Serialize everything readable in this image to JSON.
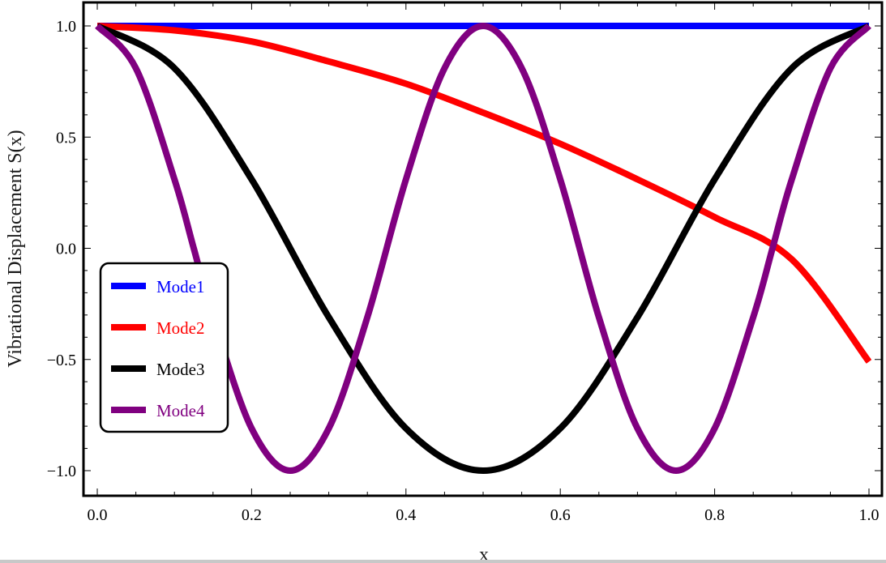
{
  "chart_data": {
    "type": "line",
    "title": "",
    "xlabel": "x",
    "ylabel": "Vibrational Displacement S(x)",
    "xlim": [
      -0.01,
      1.01
    ],
    "ylim": [
      -1.05,
      1.05
    ],
    "xticks": [
      "0.0",
      "0.2",
      "0.4",
      "0.6",
      "0.8",
      "1.0"
    ],
    "xtick_values": [
      0.0,
      0.2,
      0.4,
      0.6,
      0.8,
      1.0
    ],
    "yticks": [
      "−1.0",
      "−0.5",
      "0.0",
      "0.5",
      "1.0"
    ],
    "ytick_values": [
      -1.0,
      -0.5,
      0.0,
      0.5,
      1.0
    ],
    "grid": false,
    "legend_position": "lower-left",
    "series": [
      {
        "name": "Mode1",
        "color": "#0000ff",
        "x": [
          0,
          0.25,
          0.5,
          0.75,
          1.0
        ],
        "y": [
          1.0,
          1.0,
          1.0,
          1.0,
          1.0
        ]
      },
      {
        "name": "Mode2",
        "color": "#ff0000",
        "x": [
          0,
          0.1,
          0.2,
          0.3,
          0.4,
          0.5,
          0.6,
          0.7,
          0.8,
          0.9,
          1.0
        ],
        "y": [
          1.0,
          0.98,
          0.93,
          0.84,
          0.74,
          0.61,
          0.47,
          0.31,
          0.14,
          -0.05,
          -0.51
        ]
      },
      {
        "name": "Mode3",
        "color": "#000000",
        "x": [
          0,
          0.1,
          0.2,
          0.3,
          0.4,
          0.5,
          0.6,
          0.7,
          0.8,
          0.9,
          1.0
        ],
        "y": [
          1.0,
          0.81,
          0.31,
          -0.31,
          -0.81,
          -1.0,
          -0.81,
          -0.31,
          0.31,
          0.81,
          1.0
        ]
      },
      {
        "name": "Mode4",
        "color": "#800080",
        "x": [
          0,
          0.05,
          0.1,
          0.125,
          0.15,
          0.2,
          0.25,
          0.3,
          0.35,
          0.4,
          0.45,
          0.5,
          0.55,
          0.6,
          0.65,
          0.7,
          0.75,
          0.8,
          0.85,
          0.875,
          0.9,
          0.95,
          1.0
        ],
        "y": [
          1.0,
          0.81,
          0.31,
          0.0,
          -0.31,
          -0.81,
          -1.0,
          -0.81,
          -0.31,
          0.31,
          0.81,
          1.0,
          0.81,
          0.31,
          -0.31,
          -0.81,
          -1.0,
          -0.81,
          -0.31,
          0.0,
          0.31,
          0.81,
          1.0
        ]
      }
    ]
  }
}
